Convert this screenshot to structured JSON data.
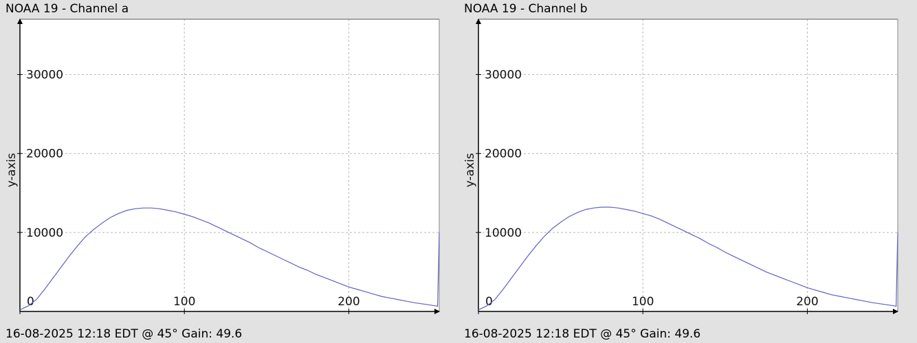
{
  "chart_data": [
    {
      "type": "line",
      "title": "NOAA 19 - Channel a",
      "caption": "16-08-2025 12:18 EDT @ 45° Gain: 49.6",
      "xlabel": "",
      "ylabel": "y-axis",
      "xlim": [
        0,
        255
      ],
      "ylim": [
        0,
        37000
      ],
      "x_ticks": [
        0,
        100,
        200
      ],
      "y_ticks": [
        10000,
        20000,
        30000
      ],
      "grid": true,
      "series": [
        {
          "color": "#6060c8",
          "x": [
            0,
            5,
            10,
            15,
            20,
            25,
            30,
            35,
            40,
            45,
            50,
            55,
            60,
            65,
            70,
            75,
            80,
            85,
            90,
            95,
            100,
            105,
            110,
            115,
            120,
            125,
            130,
            135,
            140,
            145,
            150,
            155,
            160,
            165,
            170,
            175,
            180,
            185,
            190,
            195,
            200,
            205,
            210,
            215,
            220,
            225,
            230,
            235,
            240,
            245,
            250,
            253,
            254,
            255
          ],
          "y": [
            200,
            700,
            1500,
            2800,
            4200,
            5600,
            7000,
            8300,
            9500,
            10400,
            11200,
            11900,
            12400,
            12800,
            13000,
            13100,
            13100,
            13000,
            12800,
            12600,
            12300,
            12000,
            11600,
            11200,
            10700,
            10200,
            9700,
            9200,
            8700,
            8100,
            7600,
            7100,
            6600,
            6100,
            5600,
            5200,
            4700,
            4300,
            3900,
            3500,
            3100,
            2800,
            2500,
            2200,
            1900,
            1700,
            1500,
            1300,
            1100,
            950,
            800,
            700,
            650,
            10000
          ]
        }
      ]
    },
    {
      "type": "line",
      "title": "NOAA 19 - Channel b",
      "caption": "16-08-2025 12:18 EDT @ 45° Gain: 49.6",
      "xlabel": "",
      "ylabel": "y-axis",
      "xlim": [
        0,
        255
      ],
      "ylim": [
        0,
        37000
      ],
      "x_ticks": [
        0,
        100,
        200
      ],
      "y_ticks": [
        10000,
        20000,
        30000
      ],
      "grid": true,
      "series": [
        {
          "color": "#6060c8",
          "x": [
            0,
            5,
            10,
            15,
            20,
            25,
            30,
            35,
            40,
            45,
            50,
            55,
            60,
            65,
            70,
            75,
            80,
            85,
            90,
            95,
            100,
            105,
            110,
            115,
            120,
            125,
            130,
            135,
            140,
            145,
            150,
            155,
            160,
            165,
            170,
            175,
            180,
            185,
            190,
            195,
            200,
            205,
            210,
            215,
            220,
            225,
            230,
            235,
            240,
            245,
            250,
            253,
            254,
            255
          ],
          "y": [
            200,
            700,
            1500,
            2800,
            4200,
            5600,
            7000,
            8300,
            9500,
            10500,
            11300,
            12000,
            12500,
            12900,
            13100,
            13200,
            13200,
            13100,
            12900,
            12700,
            12400,
            12100,
            11700,
            11200,
            10700,
            10200,
            9700,
            9200,
            8600,
            8100,
            7500,
            7000,
            6500,
            6000,
            5500,
            5000,
            4600,
            4200,
            3800,
            3400,
            3000,
            2700,
            2400,
            2100,
            1900,
            1700,
            1500,
            1300,
            1100,
            950,
            800,
            700,
            650,
            10000
          ]
        }
      ]
    }
  ]
}
